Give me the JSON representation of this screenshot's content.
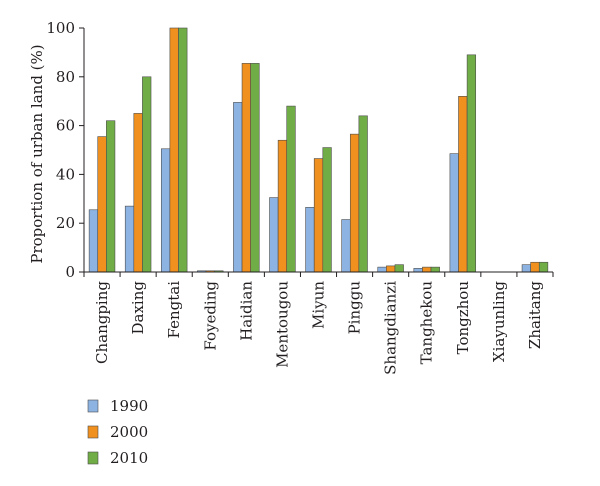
{
  "chart_data": {
    "type": "bar",
    "title": "",
    "xlabel": "",
    "ylabel": "Proportion of urban land (%)",
    "ylim": [
      0,
      100
    ],
    "yticks": [
      0,
      20,
      40,
      60,
      80,
      100
    ],
    "grid": false,
    "legend_position": "bottom-left",
    "categories": [
      "Changping",
      "Daxing",
      "Fengtai",
      "Foyeding",
      "Haidian",
      "Mentougou",
      "Miyun",
      "Pinggu",
      "Shangdianzi",
      "Tanghekou",
      "Tongzhou",
      "Xiayunling",
      "Zhaitang"
    ],
    "series": [
      {
        "name": "1990",
        "color": "#8db3e2",
        "values": [
          25.5,
          27,
          50.5,
          0.5,
          69.5,
          30.5,
          26.5,
          21.5,
          2,
          1.5,
          48.5,
          0,
          3
        ]
      },
      {
        "name": "2000",
        "color": "#f0901e",
        "values": [
          55.5,
          65,
          100,
          0.5,
          85.5,
          54,
          46.5,
          56.5,
          2.5,
          2,
          72,
          0,
          4
        ]
      },
      {
        "name": "2010",
        "color": "#70ad47",
        "values": [
          62,
          80,
          100,
          0.5,
          85.5,
          68,
          51,
          64,
          3,
          2,
          89,
          0,
          4
        ]
      }
    ]
  }
}
